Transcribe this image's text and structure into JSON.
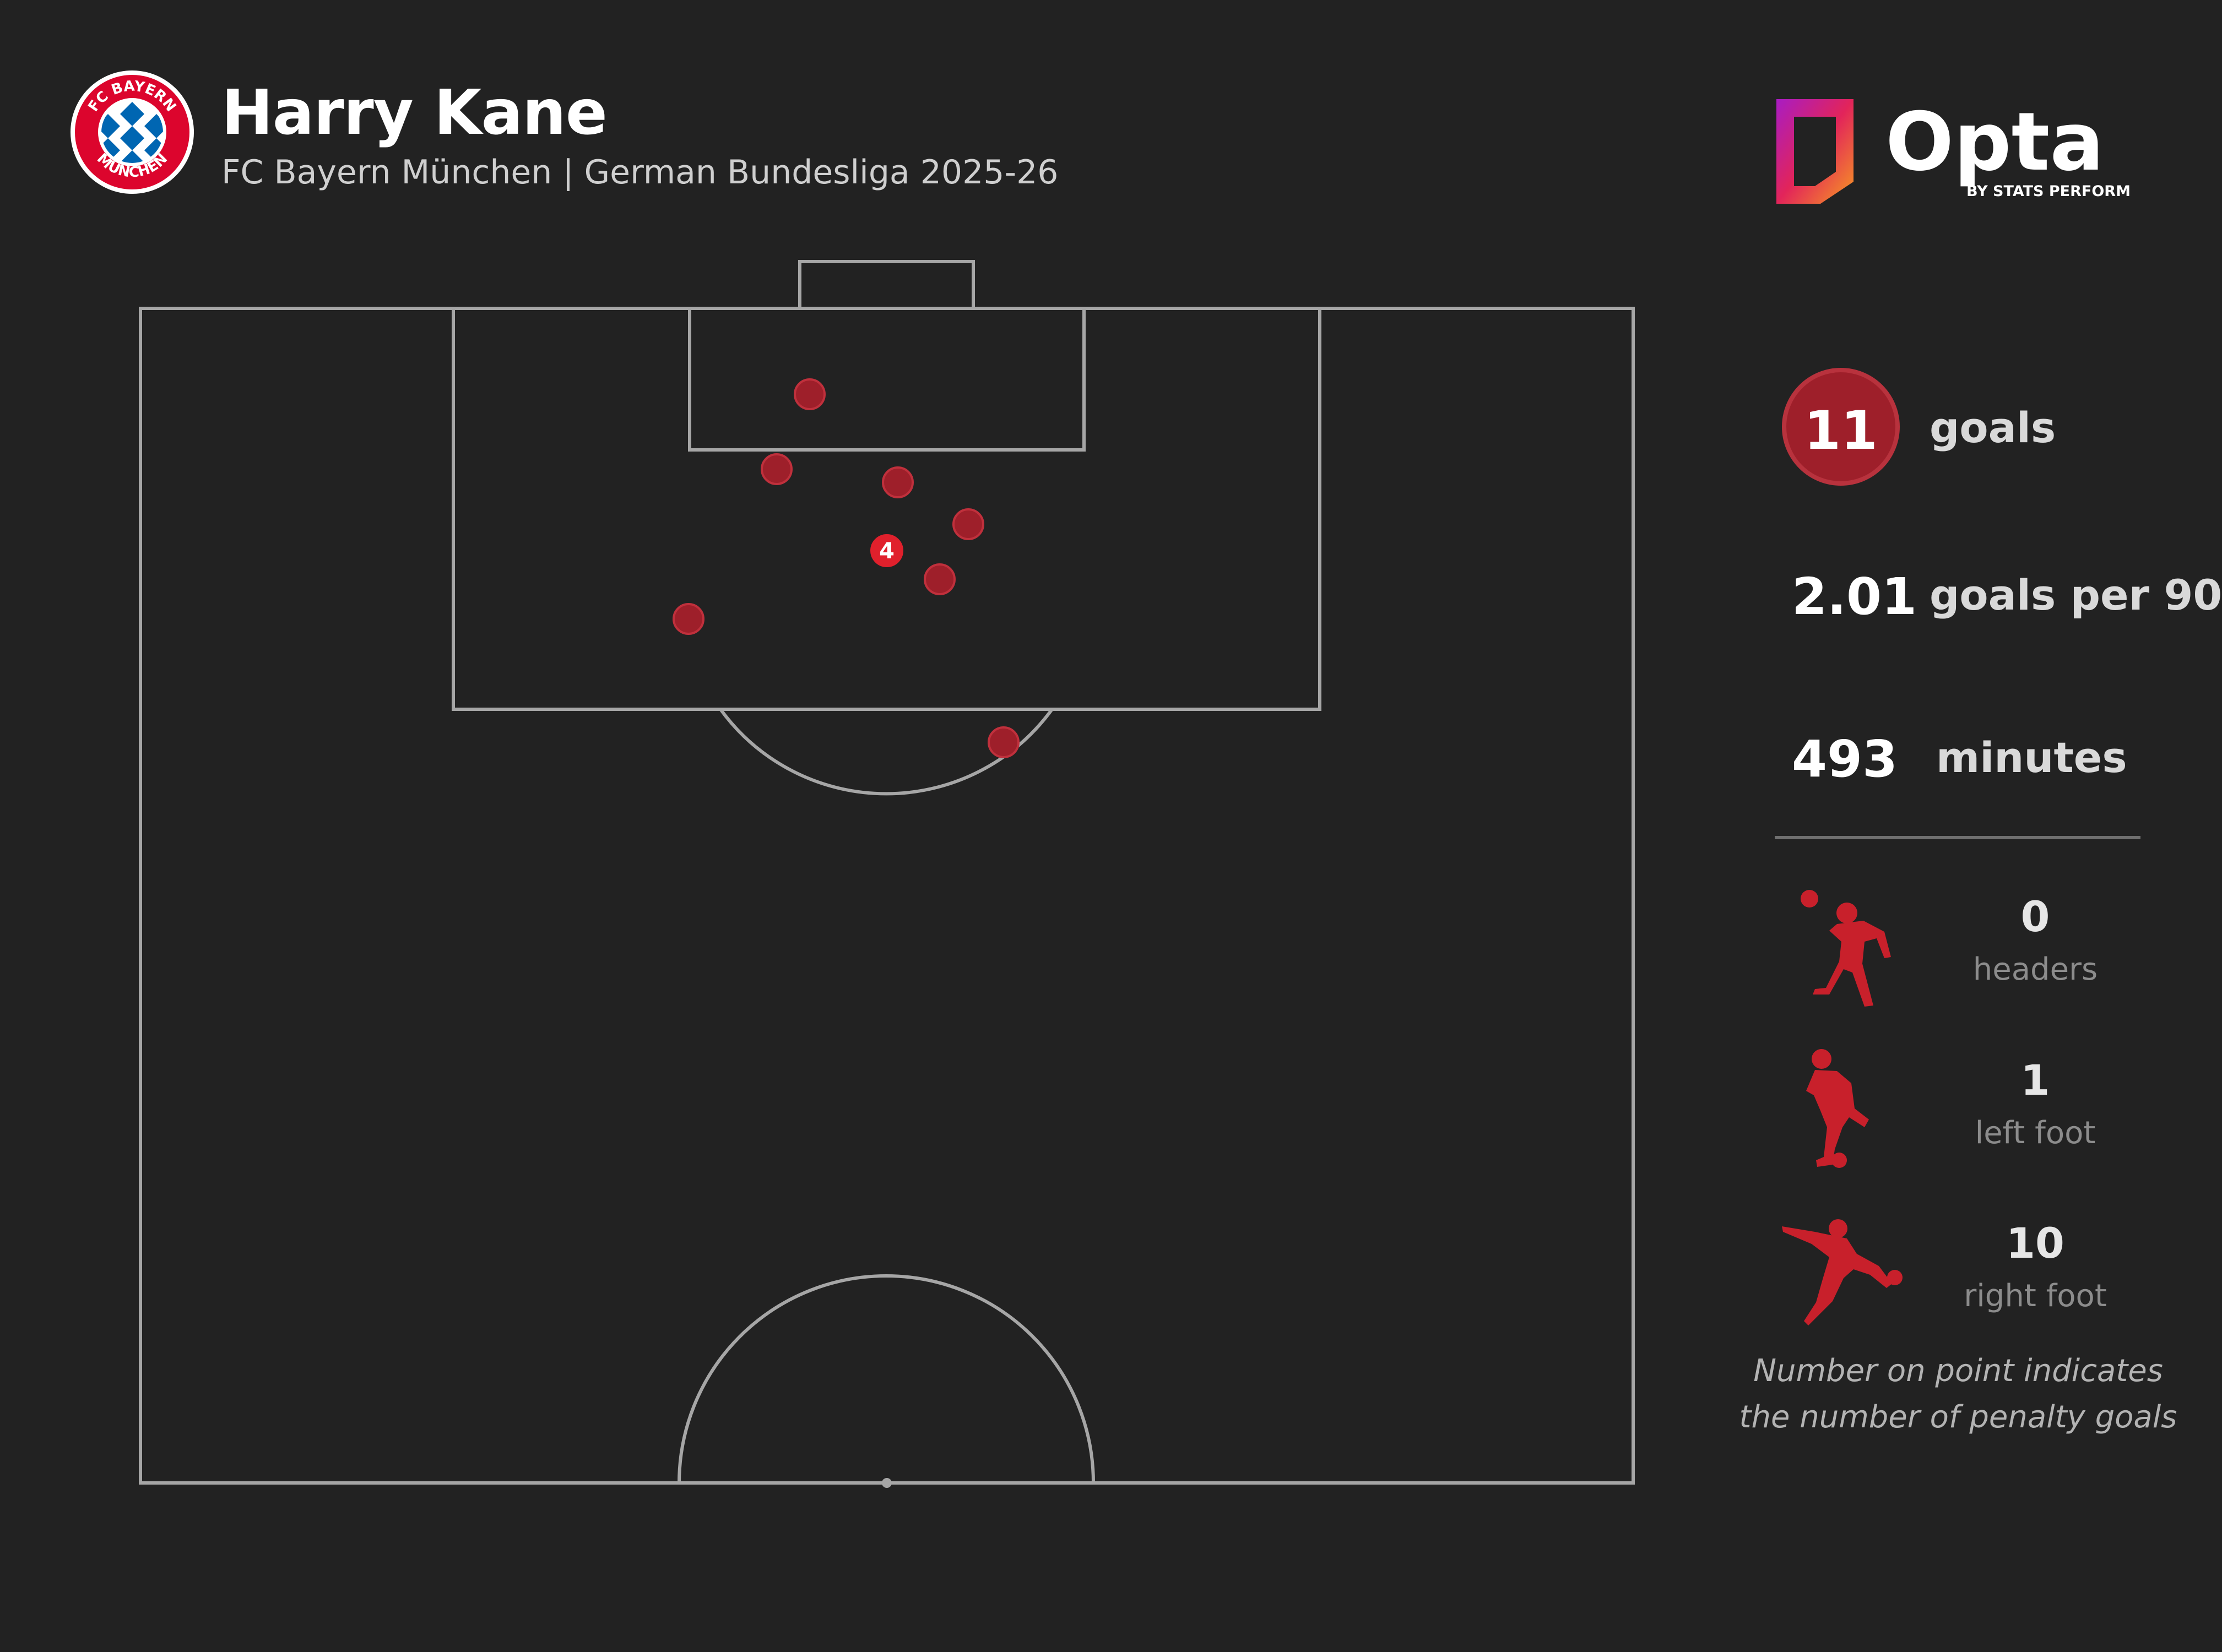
{
  "header": {
    "player": "Harry Kane",
    "subtitle": "FC Bayern München | German Bundesliga 2025-26",
    "crest_text_top": "FC BAYERN",
    "crest_text_bottom": "MÜNCHEN",
    "brand": "Opta",
    "brand_sub": "BY STATS PERFORM"
  },
  "colors": {
    "background": "#222222",
    "pitch_lines": "#a6a6a6",
    "goal_point": "#9e1f2a",
    "goal_point_edge": "#c0303c",
    "penalty_point": "#e0202c",
    "crest_red": "#dc052d",
    "crest_blue": "#0066b2"
  },
  "stats": {
    "goals": {
      "value": "11",
      "label": "goals"
    },
    "per90": {
      "value": "2.01",
      "label": "goals per 90"
    },
    "minutes": {
      "value": "493",
      "label": "minutes"
    }
  },
  "types": [
    {
      "icon": "header-player-icon",
      "count": "0",
      "label": "headers"
    },
    {
      "icon": "left-foot-player-icon",
      "count": "1",
      "label": "left foot"
    },
    {
      "icon": "right-foot-player-icon",
      "count": "10",
      "label": "right foot"
    }
  ],
  "footnote": "Number on point indicates the number of penalty goals",
  "chart_data": {
    "type": "scatter",
    "title": "Harry Kane",
    "subtitle": "FC Bayern München | German Bundesliga 2025-26",
    "coordinate_system": "metres from goal line (y) and from pitch centre line (x), attacking half",
    "points": [
      {
        "x": -3.5,
        "y": 3.9,
        "penalty_goals": 0
      },
      {
        "x": -5.0,
        "y": 7.3,
        "penalty_goals": 0
      },
      {
        "x": 0.5,
        "y": 7.9,
        "penalty_goals": 0
      },
      {
        "x": 3.7,
        "y": 9.8,
        "penalty_goals": 0
      },
      {
        "x": 0.0,
        "y": 11.0,
        "penalty_goals": 4
      },
      {
        "x": 2.4,
        "y": 12.3,
        "penalty_goals": 0
      },
      {
        "x": -9.0,
        "y": 14.1,
        "penalty_goals": 0
      },
      {
        "x": 5.3,
        "y": 19.7,
        "penalty_goals": 0
      }
    ]
  }
}
